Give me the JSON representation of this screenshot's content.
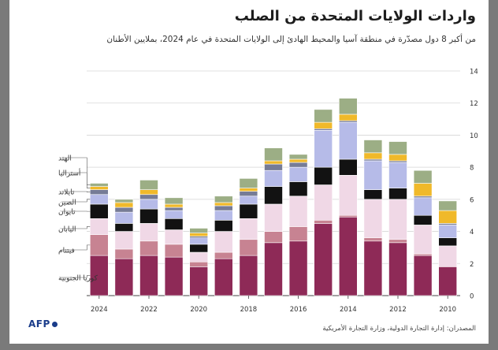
{
  "title": "واردات الولايات المتحدة من الصلب",
  "subtitle": "من أكبر 8 دول مصدّرة في منطقة آسيا والمحيط الهادئ إلى الولايات المتحدة في عام 2024، بملايين الأطنان",
  "source": "المصدران: إدارة التجارة الدولية، وزارة التجارة الأمريكية",
  "logo": "AFP",
  "colors": {
    "كوريا الجنوبية": "#8e2a57",
    "فيتنام": "#c78392",
    "اليابان": "#f0d8e6",
    "تايوان": "#121212",
    "الصين": "#b6bbe8",
    "تايلاند": "#767c96",
    "أستراليا": "#f0b92a",
    "الهند": "#9cae85"
  },
  "chart_data": {
    "type": "bar",
    "stacked": true,
    "categories": [
      "2024",
      "2023",
      "2022",
      "2021",
      "2020",
      "2019",
      "2018",
      "2017",
      "2016",
      "2015",
      "2014",
      "2013",
      "2012",
      "2011",
      "2010"
    ],
    "x_tick_labels": [
      "2024",
      "2022",
      "2020",
      "2018",
      "2016",
      "2014",
      "2012",
      "2010"
    ],
    "ylim": [
      0,
      14
    ],
    "y_ticks": [
      "0",
      "2",
      "4",
      "6",
      "8",
      "10",
      "12",
      "14"
    ],
    "grid": true,
    "series": [
      {
        "name": "كوريا الجنوبية",
        "values": [
          2.5,
          2.3,
          2.5,
          2.4,
          1.8,
          2.3,
          2.5,
          3.3,
          3.4,
          4.5,
          4.9,
          3.4,
          3.3,
          2.5,
          1.8
        ]
      },
      {
        "name": "فيتنام",
        "values": [
          1.3,
          0.6,
          0.9,
          0.8,
          0.3,
          0.4,
          1.0,
          0.7,
          0.9,
          0.2,
          0.1,
          0.2,
          0.2,
          0.1,
          0.0
        ]
      },
      {
        "name": "اليابان",
        "values": [
          1.0,
          1.1,
          1.1,
          0.9,
          0.6,
          1.3,
          1.3,
          1.7,
          1.9,
          2.2,
          2.5,
          2.4,
          2.5,
          1.8,
          1.3
        ]
      },
      {
        "name": "تايوان",
        "values": [
          0.9,
          0.5,
          0.9,
          0.7,
          0.5,
          0.7,
          0.9,
          1.1,
          0.9,
          1.1,
          1.0,
          0.6,
          0.7,
          0.6,
          0.5
        ]
      },
      {
        "name": "الصين",
        "values": [
          0.6,
          0.7,
          0.6,
          0.5,
          0.4,
          0.6,
          0.5,
          1.0,
          0.9,
          2.3,
          2.3,
          1.8,
          1.6,
          1.1,
          0.8
        ]
      },
      {
        "name": "تايلاند",
        "values": [
          0.3,
          0.3,
          0.3,
          0.2,
          0.1,
          0.3,
          0.3,
          0.4,
          0.3,
          0.1,
          0.1,
          0.1,
          0.1,
          0.1,
          0.1
        ]
      },
      {
        "name": "أستراليا",
        "values": [
          0.2,
          0.3,
          0.3,
          0.2,
          0.2,
          0.2,
          0.2,
          0.2,
          0.2,
          0.4,
          0.4,
          0.4,
          0.4,
          0.8,
          0.8
        ]
      },
      {
        "name": "الهند",
        "values": [
          0.2,
          0.2,
          0.6,
          0.4,
          0.3,
          0.4,
          0.6,
          0.8,
          0.3,
          0.8,
          1.0,
          0.8,
          0.8,
          0.8,
          0.6
        ]
      }
    ],
    "legend": [
      "الهند",
      "أستراليا",
      "تايلاند",
      "الصين",
      "تايوان",
      "اليابان",
      "فيتنام",
      "كوريا الجنوبية"
    ],
    "legend_position": "left, beside first bar"
  }
}
